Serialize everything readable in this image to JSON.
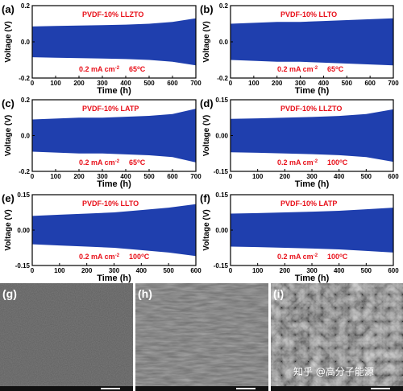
{
  "chart_data": [
    {
      "panel": "(a)",
      "type": "area",
      "label": "PVDF-10% LLZTO",
      "condition": [
        "0.2 mA cm",
        "-2",
        "65",
        "o",
        "C"
      ],
      "xlabel": "Time (h)",
      "ylabel": "Voltage (V)",
      "xlim": [
        0,
        700
      ],
      "ylim": [
        -0.2,
        0.2
      ],
      "xticks": [
        "0",
        "100",
        "200",
        "300",
        "400",
        "500",
        "600",
        "700"
      ],
      "yticks": [
        "-0.2",
        "0.0",
        "0.2"
      ],
      "ytick_values": [
        -0.2,
        0.0,
        0.2
      ],
      "x": [
        0,
        100,
        200,
        300,
        400,
        500,
        600,
        700
      ],
      "upper": [
        0.085,
        0.088,
        0.09,
        0.092,
        0.095,
        0.1,
        0.11,
        0.13
      ],
      "lower": [
        -0.085,
        -0.088,
        -0.09,
        -0.092,
        -0.095,
        -0.1,
        -0.11,
        -0.13
      ]
    },
    {
      "panel": "(b)",
      "type": "area",
      "label": "PVDF-10% LLTO",
      "condition": [
        "0.2 mA cm",
        "-2",
        "65",
        "o",
        "C"
      ],
      "xlabel": "Time (h)",
      "ylabel": "Voltage (V)",
      "xlim": [
        0,
        700
      ],
      "ylim": [
        -0.2,
        0.2
      ],
      "xticks": [
        "0",
        "100",
        "200",
        "300",
        "400",
        "500",
        "600",
        "700"
      ],
      "yticks": [
        "-0.2",
        "0.0",
        "0.2"
      ],
      "ytick_values": [
        -0.2,
        0.0,
        0.2
      ],
      "x": [
        0,
        100,
        200,
        300,
        400,
        500,
        600,
        700
      ],
      "upper": [
        0.1,
        0.105,
        0.11,
        0.11,
        0.115,
        0.12,
        0.125,
        0.13
      ],
      "lower": [
        -0.1,
        -0.105,
        -0.11,
        -0.11,
        -0.115,
        -0.12,
        -0.125,
        -0.13
      ]
    },
    {
      "panel": "(c)",
      "type": "area",
      "label": "PVDF-10% LATP",
      "condition": [
        "0.2 mA cm",
        "-2",
        "65",
        "o",
        "C"
      ],
      "xlabel": "Time (h)",
      "ylabel": "Voltage (V)",
      "xlim": [
        0,
        700
      ],
      "ylim": [
        -0.2,
        0.2
      ],
      "xticks": [
        "0",
        "100",
        "200",
        "300",
        "400",
        "500",
        "600",
        "700"
      ],
      "yticks": [
        "-0.2",
        "0.0",
        "0.2"
      ],
      "ytick_values": [
        -0.2,
        0.0,
        0.2
      ],
      "x": [
        0,
        100,
        200,
        300,
        400,
        500,
        600,
        700
      ],
      "upper": [
        0.09,
        0.095,
        0.1,
        0.1,
        0.105,
        0.11,
        0.12,
        0.15
      ],
      "lower": [
        -0.09,
        -0.095,
        -0.1,
        -0.1,
        -0.105,
        -0.11,
        -0.12,
        -0.15
      ]
    },
    {
      "panel": "(d)",
      "type": "area",
      "label": "PVDF-10% LLZTO",
      "condition": [
        "0.2 mA cm",
        "-2",
        "100",
        "o",
        "C"
      ],
      "xlabel": "Time (h)",
      "ylabel": "Voltage (V)",
      "xlim": [
        0,
        600
      ],
      "ylim": [
        -0.15,
        0.15
      ],
      "xticks": [
        "0",
        "100",
        "200",
        "300",
        "400",
        "500",
        "600"
      ],
      "yticks": [
        "-0.15",
        "0.00",
        "0.15"
      ],
      "ytick_values": [
        -0.15,
        0.0,
        0.15
      ],
      "x": [
        0,
        100,
        200,
        300,
        400,
        500,
        600
      ],
      "upper": [
        0.07,
        0.072,
        0.075,
        0.078,
        0.082,
        0.09,
        0.11
      ],
      "lower": [
        -0.07,
        -0.072,
        -0.075,
        -0.078,
        -0.082,
        -0.09,
        -0.11
      ]
    },
    {
      "panel": "(e)",
      "type": "area",
      "label": "PVDF-10% LLTO",
      "condition": [
        "0.2 mA cm",
        "-2",
        "100",
        "o",
        "C"
      ],
      "xlabel": "Time (h)",
      "ylabel": "Voltage (V)",
      "xlim": [
        0,
        600
      ],
      "ylim": [
        -0.15,
        0.15
      ],
      "xticks": [
        "0",
        "100",
        "200",
        "300",
        "400",
        "500",
        "600"
      ],
      "yticks": [
        "-0.15",
        "0.00",
        "0.15"
      ],
      "ytick_values": [
        -0.15,
        0.0,
        0.15
      ],
      "x": [
        0,
        100,
        200,
        300,
        400,
        500,
        600
      ],
      "upper": [
        0.06,
        0.065,
        0.07,
        0.075,
        0.085,
        0.095,
        0.11
      ],
      "lower": [
        -0.06,
        -0.065,
        -0.07,
        -0.075,
        -0.085,
        -0.095,
        -0.11
      ]
    },
    {
      "panel": "(f)",
      "type": "area",
      "label": "PVDF-10% LATP",
      "condition": [
        "0.2 mA cm",
        "-2",
        "100",
        "o",
        "C"
      ],
      "xlabel": "Time (h)",
      "ylabel": "Voltage (V)",
      "xlim": [
        0,
        600
      ],
      "ylim": [
        -0.15,
        0.15
      ],
      "xticks": [
        "0",
        "100",
        "200",
        "300",
        "400",
        "500",
        "600"
      ],
      "yticks": [
        "-0.15",
        "0.00",
        "0.15"
      ],
      "ytick_values": [
        -0.15,
        0.0,
        0.15
      ],
      "x": [
        0,
        100,
        200,
        300,
        400,
        500,
        600
      ],
      "upper": [
        0.07,
        0.072,
        0.075,
        0.078,
        0.082,
        0.088,
        0.095
      ],
      "lower": [
        -0.07,
        -0.072,
        -0.075,
        -0.078,
        -0.082,
        -0.088,
        -0.095
      ]
    }
  ],
  "sem_panels": [
    {
      "panel": "(g)",
      "name": "sem-image-g",
      "texture": "smooth"
    },
    {
      "panel": "(h)",
      "name": "sem-image-h",
      "texture": "streaked"
    },
    {
      "panel": "(i)",
      "name": "sem-image-i",
      "texture": "rough"
    }
  ],
  "watermark": "知乎 @高分子能源",
  "colors": {
    "fill": "#1f3fae",
    "annotation": "#e8101a",
    "axis": "#000000"
  }
}
